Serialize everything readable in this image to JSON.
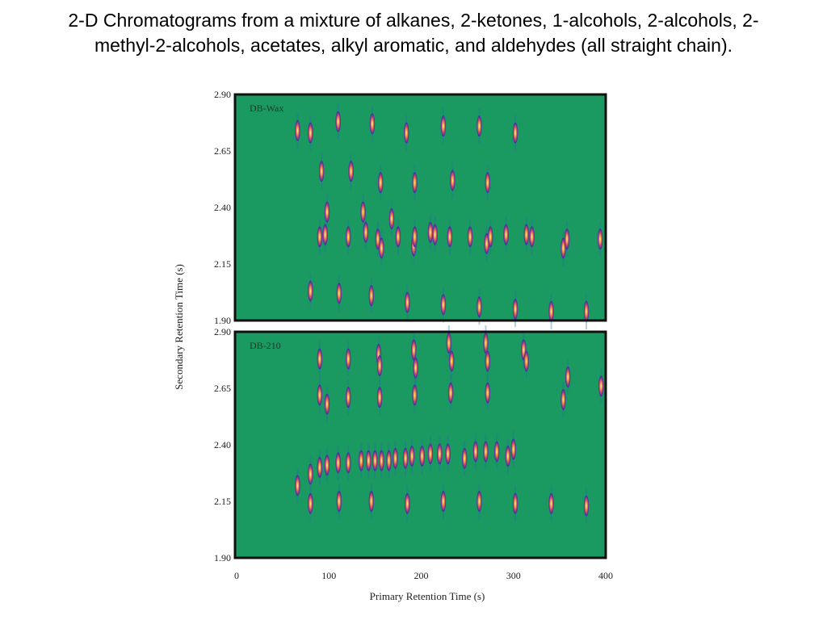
{
  "slide": {
    "title": "2-D Chromatograms from a mixture of alkanes, 2-ketones, 1-alcohols, 2-alcohols, 2-methyl-2-alcohols, acetates, alkyl aromatic, and aldehydes (all straight chain)."
  },
  "colors": {
    "plot_background": "#1a9960",
    "frame": "#111111",
    "peak_core": "#f8f8a0",
    "peak_mid": "#e8a040",
    "peak_edge": "#2a2fb0"
  },
  "chart_data": [
    {
      "type": "scatter",
      "panel_label": "DB-Wax",
      "xlabel": "Primary Retention Time (s)",
      "ylabel": "Secondary Retention Time (s)",
      "xlim": [
        0,
        400
      ],
      "ylim": [
        1.9,
        2.9
      ],
      "yticks": [
        "2.90",
        "2.65",
        "2.40",
        "2.15",
        "1.90"
      ],
      "grid": false,
      "series": [
        {
          "points": [
            {
              "x": 66,
              "y": 2.74
            },
            {
              "x": 80,
              "y": 2.73
            },
            {
              "x": 110,
              "y": 2.78
            },
            {
              "x": 147,
              "y": 2.77
            },
            {
              "x": 184,
              "y": 2.73
            },
            {
              "x": 224,
              "y": 2.76
            },
            {
              "x": 263,
              "y": 2.76
            },
            {
              "x": 302,
              "y": 2.73
            },
            {
              "x": 92,
              "y": 2.56
            },
            {
              "x": 124,
              "y": 2.56
            },
            {
              "x": 156,
              "y": 2.51
            },
            {
              "x": 193,
              "y": 2.51
            },
            {
              "x": 234,
              "y": 2.52
            },
            {
              "x": 272,
              "y": 2.51
            },
            {
              "x": 98,
              "y": 2.38
            },
            {
              "x": 137,
              "y": 2.38
            },
            {
              "x": 168,
              "y": 2.35
            },
            {
              "x": 90,
              "y": 2.27
            },
            {
              "x": 96,
              "y": 2.28
            },
            {
              "x": 121,
              "y": 2.27
            },
            {
              "x": 140,
              "y": 2.29
            },
            {
              "x": 153,
              "y": 2.26
            },
            {
              "x": 157,
              "y": 2.22
            },
            {
              "x": 175,
              "y": 2.27
            },
            {
              "x": 192,
              "y": 2.23
            },
            {
              "x": 193,
              "y": 2.27
            },
            {
              "x": 210,
              "y": 2.29
            },
            {
              "x": 215,
              "y": 2.28
            },
            {
              "x": 231,
              "y": 2.27
            },
            {
              "x": 253,
              "y": 2.27
            },
            {
              "x": 271,
              "y": 2.24
            },
            {
              "x": 275,
              "y": 2.27
            },
            {
              "x": 292,
              "y": 2.28
            },
            {
              "x": 314,
              "y": 2.28
            },
            {
              "x": 320,
              "y": 2.27
            },
            {
              "x": 354,
              "y": 2.22
            },
            {
              "x": 358,
              "y": 2.26
            },
            {
              "x": 394,
              "y": 2.26
            },
            {
              "x": 80,
              "y": 2.03
            },
            {
              "x": 111,
              "y": 2.02
            },
            {
              "x": 146,
              "y": 2.01
            },
            {
              "x": 185,
              "y": 1.98
            },
            {
              "x": 224,
              "y": 1.97
            },
            {
              "x": 263,
              "y": 1.96
            },
            {
              "x": 302,
              "y": 1.95
            },
            {
              "x": 341,
              "y": 1.94
            },
            {
              "x": 379,
              "y": 1.94
            }
          ]
        }
      ]
    },
    {
      "type": "scatter",
      "panel_label": "DB-210",
      "xlabel": "Primary Retention Time (s)",
      "ylabel": "Secondary Retention Time (s)",
      "xlim": [
        0,
        400
      ],
      "ylim": [
        1.9,
        2.9
      ],
      "xticks": [
        "0",
        "100",
        "200",
        "300",
        "400"
      ],
      "yticks": [
        "2.90",
        "2.65",
        "2.40",
        "2.15",
        "1.90"
      ],
      "grid": false,
      "series": [
        {
          "points": [
            {
              "x": 90,
              "y": 2.78
            },
            {
              "x": 121,
              "y": 2.78
            },
            {
              "x": 154,
              "y": 2.8
            },
            {
              "x": 155,
              "y": 2.75
            },
            {
              "x": 192,
              "y": 2.82
            },
            {
              "x": 194,
              "y": 2.74
            },
            {
              "x": 230,
              "y": 2.85
            },
            {
              "x": 233,
              "y": 2.77
            },
            {
              "x": 270,
              "y": 2.85
            },
            {
              "x": 272,
              "y": 2.77
            },
            {
              "x": 311,
              "y": 2.82
            },
            {
              "x": 314,
              "y": 2.77
            },
            {
              "x": 359,
              "y": 2.7
            },
            {
              "x": 395,
              "y": 2.66
            },
            {
              "x": 90,
              "y": 2.62
            },
            {
              "x": 98,
              "y": 2.58
            },
            {
              "x": 121,
              "y": 2.61
            },
            {
              "x": 155,
              "y": 2.61
            },
            {
              "x": 193,
              "y": 2.62
            },
            {
              "x": 232,
              "y": 2.63
            },
            {
              "x": 272,
              "y": 2.63
            },
            {
              "x": 354,
              "y": 2.6
            },
            {
              "x": 66,
              "y": 2.22
            },
            {
              "x": 80,
              "y": 2.27
            },
            {
              "x": 90,
              "y": 2.3
            },
            {
              "x": 98,
              "y": 2.31
            },
            {
              "x": 110,
              "y": 2.32
            },
            {
              "x": 121,
              "y": 2.32
            },
            {
              "x": 135,
              "y": 2.33
            },
            {
              "x": 143,
              "y": 2.33
            },
            {
              "x": 150,
              "y": 2.33
            },
            {
              "x": 157,
              "y": 2.33
            },
            {
              "x": 165,
              "y": 2.33
            },
            {
              "x": 172,
              "y": 2.34
            },
            {
              "x": 183,
              "y": 2.34
            },
            {
              "x": 190,
              "y": 2.35
            },
            {
              "x": 201,
              "y": 2.35
            },
            {
              "x": 210,
              "y": 2.36
            },
            {
              "x": 220,
              "y": 2.36
            },
            {
              "x": 229,
              "y": 2.36
            },
            {
              "x": 247,
              "y": 2.34
            },
            {
              "x": 259,
              "y": 2.37
            },
            {
              "x": 270,
              "y": 2.37
            },
            {
              "x": 282,
              "y": 2.37
            },
            {
              "x": 294,
              "y": 2.35
            },
            {
              "x": 300,
              "y": 2.38
            },
            {
              "x": 80,
              "y": 2.14
            },
            {
              "x": 111,
              "y": 2.15
            },
            {
              "x": 146,
              "y": 2.15
            },
            {
              "x": 185,
              "y": 2.14
            },
            {
              "x": 224,
              "y": 2.15
            },
            {
              "x": 263,
              "y": 2.15
            },
            {
              "x": 302,
              "y": 2.14
            },
            {
              "x": 341,
              "y": 2.14
            },
            {
              "x": 379,
              "y": 2.13
            }
          ]
        }
      ]
    }
  ]
}
